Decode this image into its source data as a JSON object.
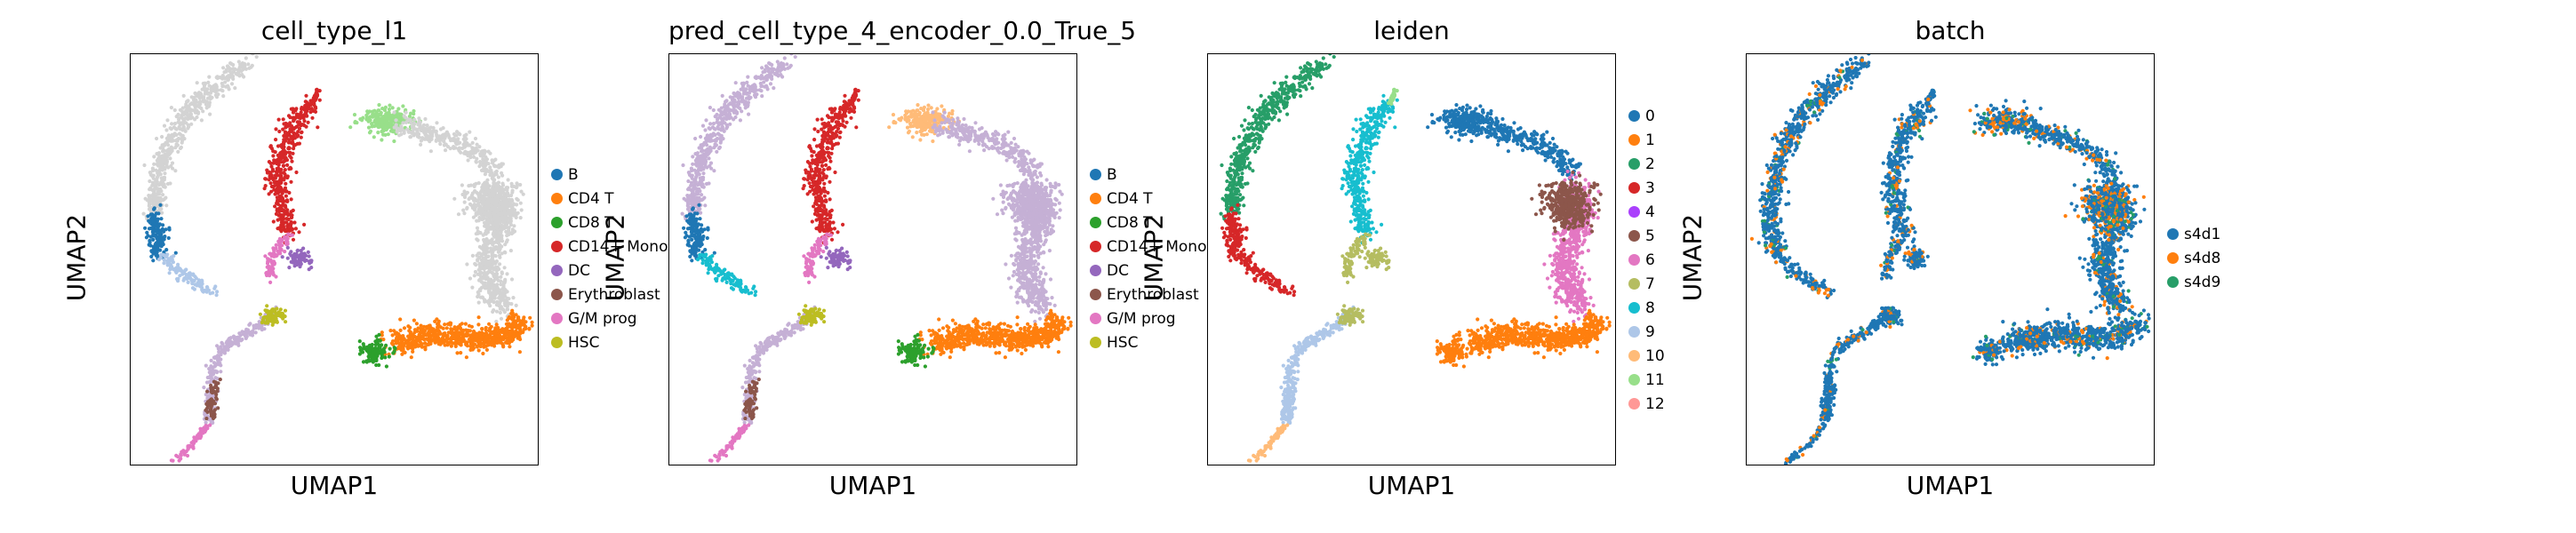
{
  "chart_data": [
    {
      "type": "scatter",
      "title": "cell_type_l1",
      "xlabel": "UMAP1",
      "ylabel": "UMAP2",
      "legend": "right",
      "grid": false,
      "categories": [
        "B",
        "CD4 T",
        "CD8 T",
        "CD14+ Mono",
        "DC",
        "Erythroblast",
        "G/M prog",
        "HSC"
      ],
      "colors": [
        "#1f77b4",
        "#ff7f0e",
        "#2ca02c",
        "#d62728",
        "#9467bd",
        "#8c564b",
        "#e377c2",
        "#bcbd22"
      ],
      "extra_color": "#d3d3d3"
    },
    {
      "type": "scatter",
      "title": "pred_cell_type_4_encoder_0.0_True_5",
      "xlabel": "UMAP1",
      "ylabel": "UMAP2",
      "legend": "right",
      "grid": false,
      "categories": [
        "B",
        "CD4 T",
        "CD8 T",
        "CD14+ Mono",
        "DC",
        "Erythroblast",
        "G/M prog",
        "HSC"
      ],
      "colors": [
        "#1f77b4",
        "#ff7f0e",
        "#2ca02c",
        "#d62728",
        "#9467bd",
        "#8c564b",
        "#e377c2",
        "#bcbd22"
      ],
      "extra_colors": [
        "#c5b0d5",
        "#f7b6d2",
        "#9edae5",
        "#ffbb78",
        "#17becf"
      ]
    },
    {
      "type": "scatter",
      "title": "leiden",
      "xlabel": "UMAP1",
      "ylabel": "UMAP2",
      "legend": "right",
      "grid": false,
      "categories": [
        "0",
        "1",
        "2",
        "3",
        "4",
        "5",
        "6",
        "7",
        "8",
        "9",
        "10",
        "11",
        "12"
      ],
      "colors": [
        "#1f77b4",
        "#ff7f0e",
        "#279e68",
        "#d62728",
        "#aa40fc",
        "#8c564b",
        "#e377c2",
        "#b5bd61",
        "#17becf",
        "#aec7e8",
        "#ffbb78",
        "#98df8a",
        "#ff9896"
      ]
    },
    {
      "type": "scatter",
      "title": "batch",
      "xlabel": "UMAP1",
      "ylabel": "UMAP2",
      "legend": "right",
      "grid": false,
      "categories": [
        "s4d1",
        "s4d8",
        "s4d9"
      ],
      "colors": [
        "#1f77b4",
        "#ff7f0e",
        "#279e68"
      ]
    }
  ]
}
